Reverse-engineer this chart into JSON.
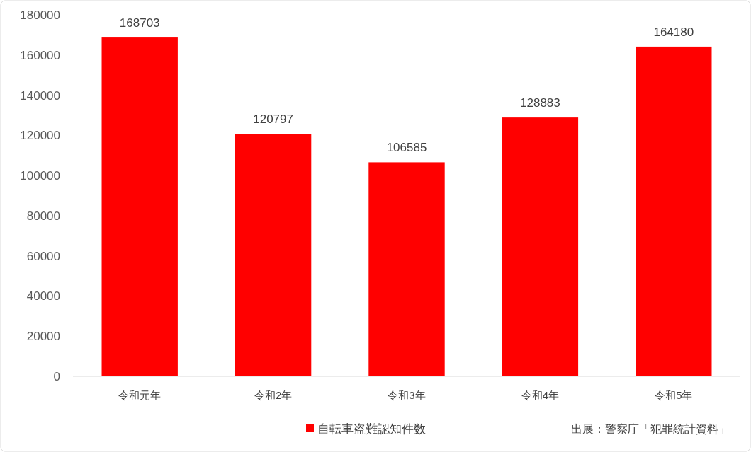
{
  "chart_data": {
    "type": "bar",
    "categories": [
      "令和元年",
      "令和2年",
      "令和3年",
      "令和4年",
      "令和5年"
    ],
    "series": [
      {
        "name": "自転車盗難認知件数",
        "color": "#ff0000",
        "values": [
          168703,
          120797,
          106585,
          128883,
          164180
        ]
      }
    ],
    "ylim": [
      0,
      180000
    ],
    "yticks": [
      0,
      20000,
      40000,
      60000,
      80000,
      100000,
      120000,
      140000,
      160000,
      180000
    ],
    "data_labels": true,
    "grid": false,
    "legend": "bottom",
    "annotations": [
      "出展：警察庁「犯罪統計資料」"
    ]
  }
}
